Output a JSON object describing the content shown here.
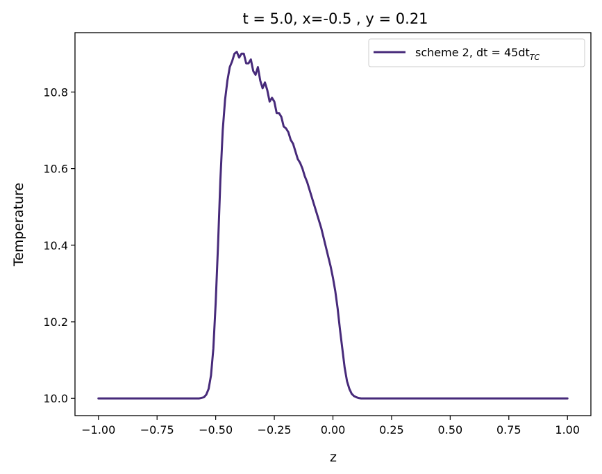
{
  "chart_data": {
    "type": "line",
    "title": "t = 5.0, x=-0.5 , y = 0.21",
    "xlabel": "z",
    "ylabel": "Temperature",
    "xlim": [
      -1.1,
      1.1
    ],
    "ylim": [
      9.955,
      10.955
    ],
    "xticks": [
      -1.0,
      -0.75,
      -0.5,
      -0.25,
      0.0,
      0.25,
      0.5,
      0.75,
      1.0
    ],
    "xtick_labels": [
      "−1.00",
      "−0.75",
      "−0.50",
      "−0.25",
      "0.00",
      "0.25",
      "0.50",
      "0.75",
      "1.00"
    ],
    "yticks": [
      10.0,
      10.2,
      10.4,
      10.6,
      10.8
    ],
    "ytick_labels": [
      "10.0",
      "10.2",
      "10.4",
      "10.6",
      "10.8"
    ],
    "grid": false,
    "legend_position": "top-right",
    "series": [
      {
        "name": "scheme 2, dt = 45dt",
        "name_subscript": "TC",
        "color": "#472a7a",
        "x": [
          -1.0,
          -0.9,
          -0.8,
          -0.7,
          -0.6,
          -0.57,
          -0.55,
          -0.54,
          -0.53,
          -0.52,
          -0.51,
          -0.5,
          -0.49,
          -0.48,
          -0.47,
          -0.46,
          -0.45,
          -0.44,
          -0.43,
          -0.42,
          -0.41,
          -0.4,
          -0.39,
          -0.38,
          -0.37,
          -0.36,
          -0.35,
          -0.34,
          -0.33,
          -0.32,
          -0.31,
          -0.3,
          -0.29,
          -0.28,
          -0.27,
          -0.26,
          -0.25,
          -0.24,
          -0.23,
          -0.22,
          -0.21,
          -0.2,
          -0.19,
          -0.18,
          -0.17,
          -0.16,
          -0.15,
          -0.14,
          -0.13,
          -0.12,
          -0.11,
          -0.1,
          -0.09,
          -0.08,
          -0.07,
          -0.06,
          -0.05,
          -0.04,
          -0.03,
          -0.02,
          -0.01,
          0.0,
          0.01,
          0.02,
          0.03,
          0.04,
          0.05,
          0.06,
          0.07,
          0.08,
          0.09,
          0.1,
          0.11,
          0.12,
          0.13,
          0.14,
          0.15,
          0.16,
          0.18,
          0.2,
          0.25,
          0.4,
          0.6,
          0.8,
          1.0
        ],
        "y": [
          10.0,
          10.0,
          10.0,
          10.0,
          10.0,
          10.0,
          10.003,
          10.01,
          10.025,
          10.06,
          10.13,
          10.25,
          10.4,
          10.57,
          10.7,
          10.78,
          10.83,
          10.865,
          10.88,
          10.9,
          10.905,
          10.89,
          10.9,
          10.9,
          10.875,
          10.875,
          10.885,
          10.855,
          10.845,
          10.865,
          10.83,
          10.81,
          10.825,
          10.805,
          10.775,
          10.785,
          10.775,
          10.745,
          10.745,
          10.735,
          10.71,
          10.705,
          10.695,
          10.675,
          10.665,
          10.645,
          10.625,
          10.615,
          10.6,
          10.58,
          10.565,
          10.545,
          10.525,
          10.505,
          10.485,
          10.465,
          10.445,
          10.42,
          10.395,
          10.37,
          10.345,
          10.315,
          10.28,
          10.235,
          10.18,
          10.13,
          10.08,
          10.045,
          10.025,
          10.012,
          10.006,
          10.003,
          10.001,
          10.0,
          10.0,
          10.0,
          10.0,
          10.0,
          10.0,
          10.0,
          10.0,
          10.0,
          10.0,
          10.0,
          10.0
        ]
      }
    ]
  }
}
